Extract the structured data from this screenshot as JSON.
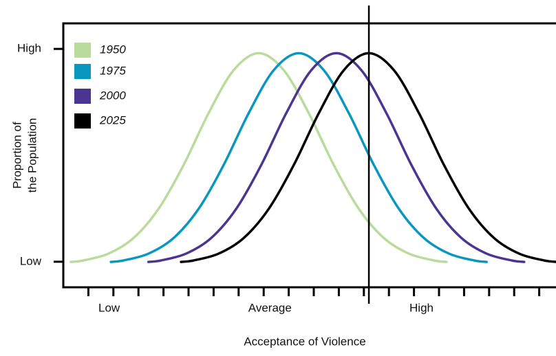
{
  "chart_data": {
    "type": "line",
    "xlabel": "Acceptance of Violence",
    "ylabel": [
      "Proportion of",
      "the Population"
    ],
    "xlim": [
      0,
      19.67
    ],
    "ylim": [
      -0.12,
      1.12
    ],
    "xticks": [
      1,
      2,
      3,
      4,
      5,
      6,
      7,
      8,
      9,
      10,
      11,
      12,
      13,
      14,
      15,
      16,
      17,
      18,
      19
    ],
    "xtick_labels": [
      {
        "value": 1.83,
        "label": "Low"
      },
      {
        "value": 8.25,
        "label": "Average"
      },
      {
        "value": 14.3,
        "label": "High"
      }
    ],
    "yticks": [
      {
        "value": 0,
        "label": "Low"
      },
      {
        "value": 1,
        "label": "High"
      }
    ],
    "vline_x": 12.2,
    "legend": "upper left",
    "series": [
      {
        "name": "1950",
        "color": "#b9dc9d",
        "x": [
          0.3,
          0.8,
          1.8,
          2.8,
          3.8,
          4.8,
          5.8,
          6.8,
          7.8,
          8.8,
          9.8,
          10.8,
          11.8,
          12.8,
          13.8,
          14.8,
          15.3
        ],
        "values": [
          -0.001,
          0.006,
          0.038,
          0.111,
          0.248,
          0.454,
          0.698,
          0.9,
          0.98,
          0.9,
          0.698,
          0.454,
          0.248,
          0.111,
          0.038,
          0.006,
          -0.001
        ]
      },
      {
        "name": "1975",
        "color": "#0a97bf",
        "x": [
          1.9,
          2.4,
          3.4,
          4.4,
          5.4,
          6.4,
          7.4,
          8.4,
          9.4,
          10.4,
          11.4,
          12.4,
          13.4,
          14.4,
          15.4,
          16.4,
          16.9
        ],
        "values": [
          -0.001,
          0.006,
          0.038,
          0.111,
          0.248,
          0.454,
          0.698,
          0.9,
          0.98,
          0.9,
          0.698,
          0.454,
          0.248,
          0.111,
          0.038,
          0.006,
          -0.001
        ]
      },
      {
        "name": "2000",
        "color": "#4a3690",
        "x": [
          3.4,
          3.9,
          4.9,
          5.9,
          6.9,
          7.9,
          8.9,
          9.9,
          10.9,
          11.9,
          12.9,
          13.9,
          14.9,
          15.9,
          16.9,
          17.9,
          18.4
        ],
        "values": [
          -0.001,
          0.006,
          0.038,
          0.111,
          0.248,
          0.454,
          0.698,
          0.9,
          0.98,
          0.9,
          0.698,
          0.454,
          0.248,
          0.111,
          0.038,
          0.006,
          -0.001
        ]
      },
      {
        "name": "2025",
        "color": "#000000",
        "x": [
          4.7,
          5.2,
          6.2,
          7.2,
          8.2,
          9.2,
          10.2,
          11.2,
          12.2,
          13.2,
          14.2,
          15.2,
          16.2,
          17.2,
          18.2,
          19.2,
          19.7
        ],
        "values": [
          -0.001,
          0.006,
          0.038,
          0.111,
          0.248,
          0.454,
          0.698,
          0.9,
          0.98,
          0.9,
          0.698,
          0.454,
          0.248,
          0.111,
          0.038,
          0.006,
          -0.001
        ]
      }
    ]
  }
}
